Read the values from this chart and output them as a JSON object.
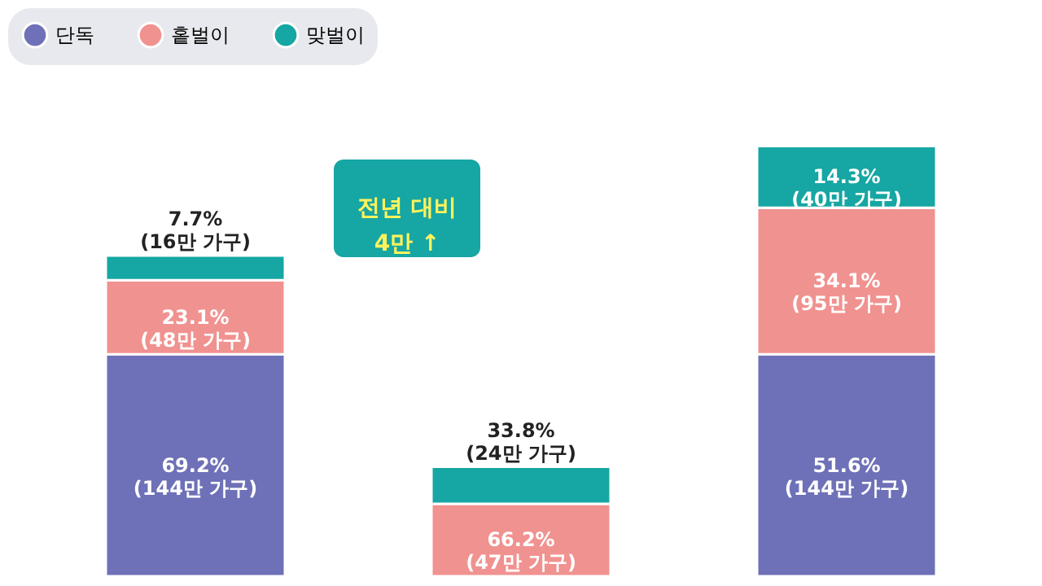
{
  "chart_data": {
    "type": "bar",
    "stacked": true,
    "categories": [
      null,
      null,
      null
    ],
    "series": [
      {
        "name": "단독",
        "color": "#6e71b7",
        "values": [
          144,
          null,
          144
        ],
        "value_labels": [
          "69.2%\n(144만 가구)",
          null,
          "51.6%\n(144만 가구)"
        ]
      },
      {
        "name": "홑벌이",
        "color": "#f09290",
        "values": [
          48,
          47,
          95
        ],
        "value_labels": [
          "23.1%\n(48만 가구)",
          "66.2%\n(47만 가구)",
          "34.1%\n(95만 가구)"
        ]
      },
      {
        "name": "맞벌이",
        "color": "#16a6a3",
        "values": [
          16,
          24,
          40
        ],
        "value_labels": [
          "7.7%\n(16만 가구)",
          "33.8%\n(24만 가구)",
          "14.3%\n(40만 가구)"
        ]
      }
    ],
    "legend": "top",
    "annotations": [
      "전년 대비\n4만 ↑"
    ]
  }
}
